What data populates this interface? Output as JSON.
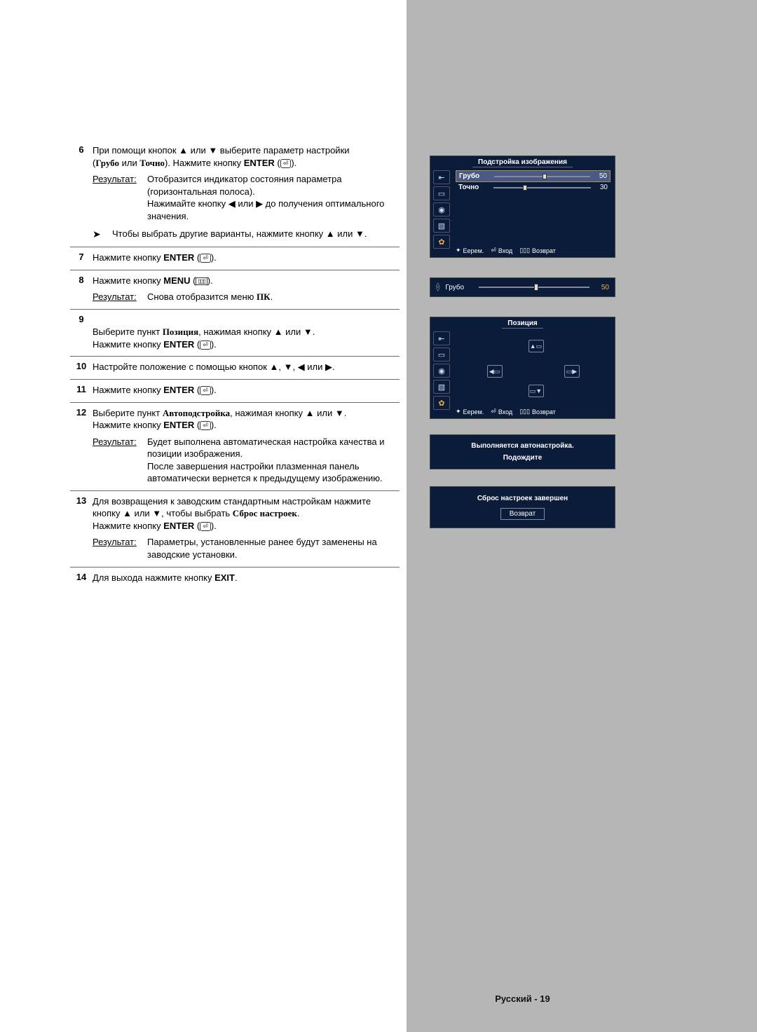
{
  "steps": {
    "s6": {
      "num": "6",
      "line1_a": "При помощи кнопок ▲ или ▼ выберите параметр настройки",
      "line1_b": "(",
      "coarse": "Грубо",
      "or": " или ",
      "fine": "Точно",
      "line1_c": "). Нажмите кнопку ",
      "enter": "ENTER",
      "after": " (",
      "close": ").",
      "res_label": "Результат:",
      "res_text": "Отобразится индикатор состояния параметра (горизонтальная полоса).\nНажимайте кнопку ◀ или ▶ до получения оптимального значения.",
      "note": "Чтобы выбрать другие варианты, нажмите кнопку ▲ или ▼."
    },
    "s7": {
      "num": "7",
      "text_a": "Нажмите кнопку ",
      "enter": "ENTER"
    },
    "s8": {
      "num": "8",
      "text_a": "Нажмите кнопку ",
      "menu": "MENU",
      "res_label": "Результат:",
      "res_text_a": "Снова отобразится меню ",
      "pk": "ПК",
      "dot": "."
    },
    "s9": {
      "num": "9",
      "text_a": "Выберите пункт ",
      "pos": "Позиция",
      "text_b": ", нажимая кнопку ▲ или ▼.\nНажмите кнопку ",
      "enter": "ENTER"
    },
    "s10": {
      "num": "10",
      "text": "Настройте положение с помощью кнопок ▲, ▼, ◀ или ▶."
    },
    "s11": {
      "num": "11",
      "text_a": "Нажмите кнопку ",
      "enter": "ENTER"
    },
    "s12": {
      "num": "12",
      "text_a": "Выберите пункт ",
      "auto": "Автоподстройка",
      "text_b": ", нажимая кнопку ▲ или ▼.\nНажмите кнопку ",
      "enter": "ENTER",
      "res_label": "Результат:",
      "res_text": "Будет выполнена автоматическая настройка качества и позиции изображения.\nПосле завершения настройки плазменная панель автоматически вернется к предыдущему изображению."
    },
    "s13": {
      "num": "13",
      "text_a": "Для возвращения к заводским стандартным настройкам нажмите кнопку ▲ или ▼, чтобы выбрать ",
      "reset": "Сброс настроек",
      "text_b": ".\nНажмите кнопку ",
      "enter": "ENTER",
      "res_label": "Результат:",
      "res_text": "Параметры, установленные ранее будут заменены на заводские установки."
    },
    "s14": {
      "num": "14",
      "text_a": "Для выхода нажмите кнопку ",
      "exit": "EXIT",
      "dot": "."
    }
  },
  "osd1": {
    "title": "Подстройка изображения",
    "coarse_label": "Грубо",
    "coarse_value": "50",
    "coarse_knob_pct": 50,
    "fine_label": "Точно",
    "fine_value": "30",
    "fine_knob_pct": 30,
    "footer_move": "Еерем.",
    "footer_enter": "Вход",
    "footer_return": "Возврат"
  },
  "osd2": {
    "label": "Грубо",
    "value": "50",
    "knob_pct": 50
  },
  "osd3": {
    "title": "Позиция",
    "footer_move": "Еерем.",
    "footer_enter": "Вход",
    "footer_return": "Возврат"
  },
  "osd4": {
    "line1": "Выполняется автонастройка.",
    "line2": "Подождите"
  },
  "osd5": {
    "line1": "Сброс настроек завершен",
    "button": "Возврат"
  },
  "icons": {
    "enter_glyph": "⏎",
    "menu_glyph": "▯▯▯"
  },
  "colors": {
    "osd_bg": "#0b1b3a",
    "osd_accent": "#f0b040",
    "gray_strip": "#b6b6b6"
  },
  "footer": "Русский - 19"
}
